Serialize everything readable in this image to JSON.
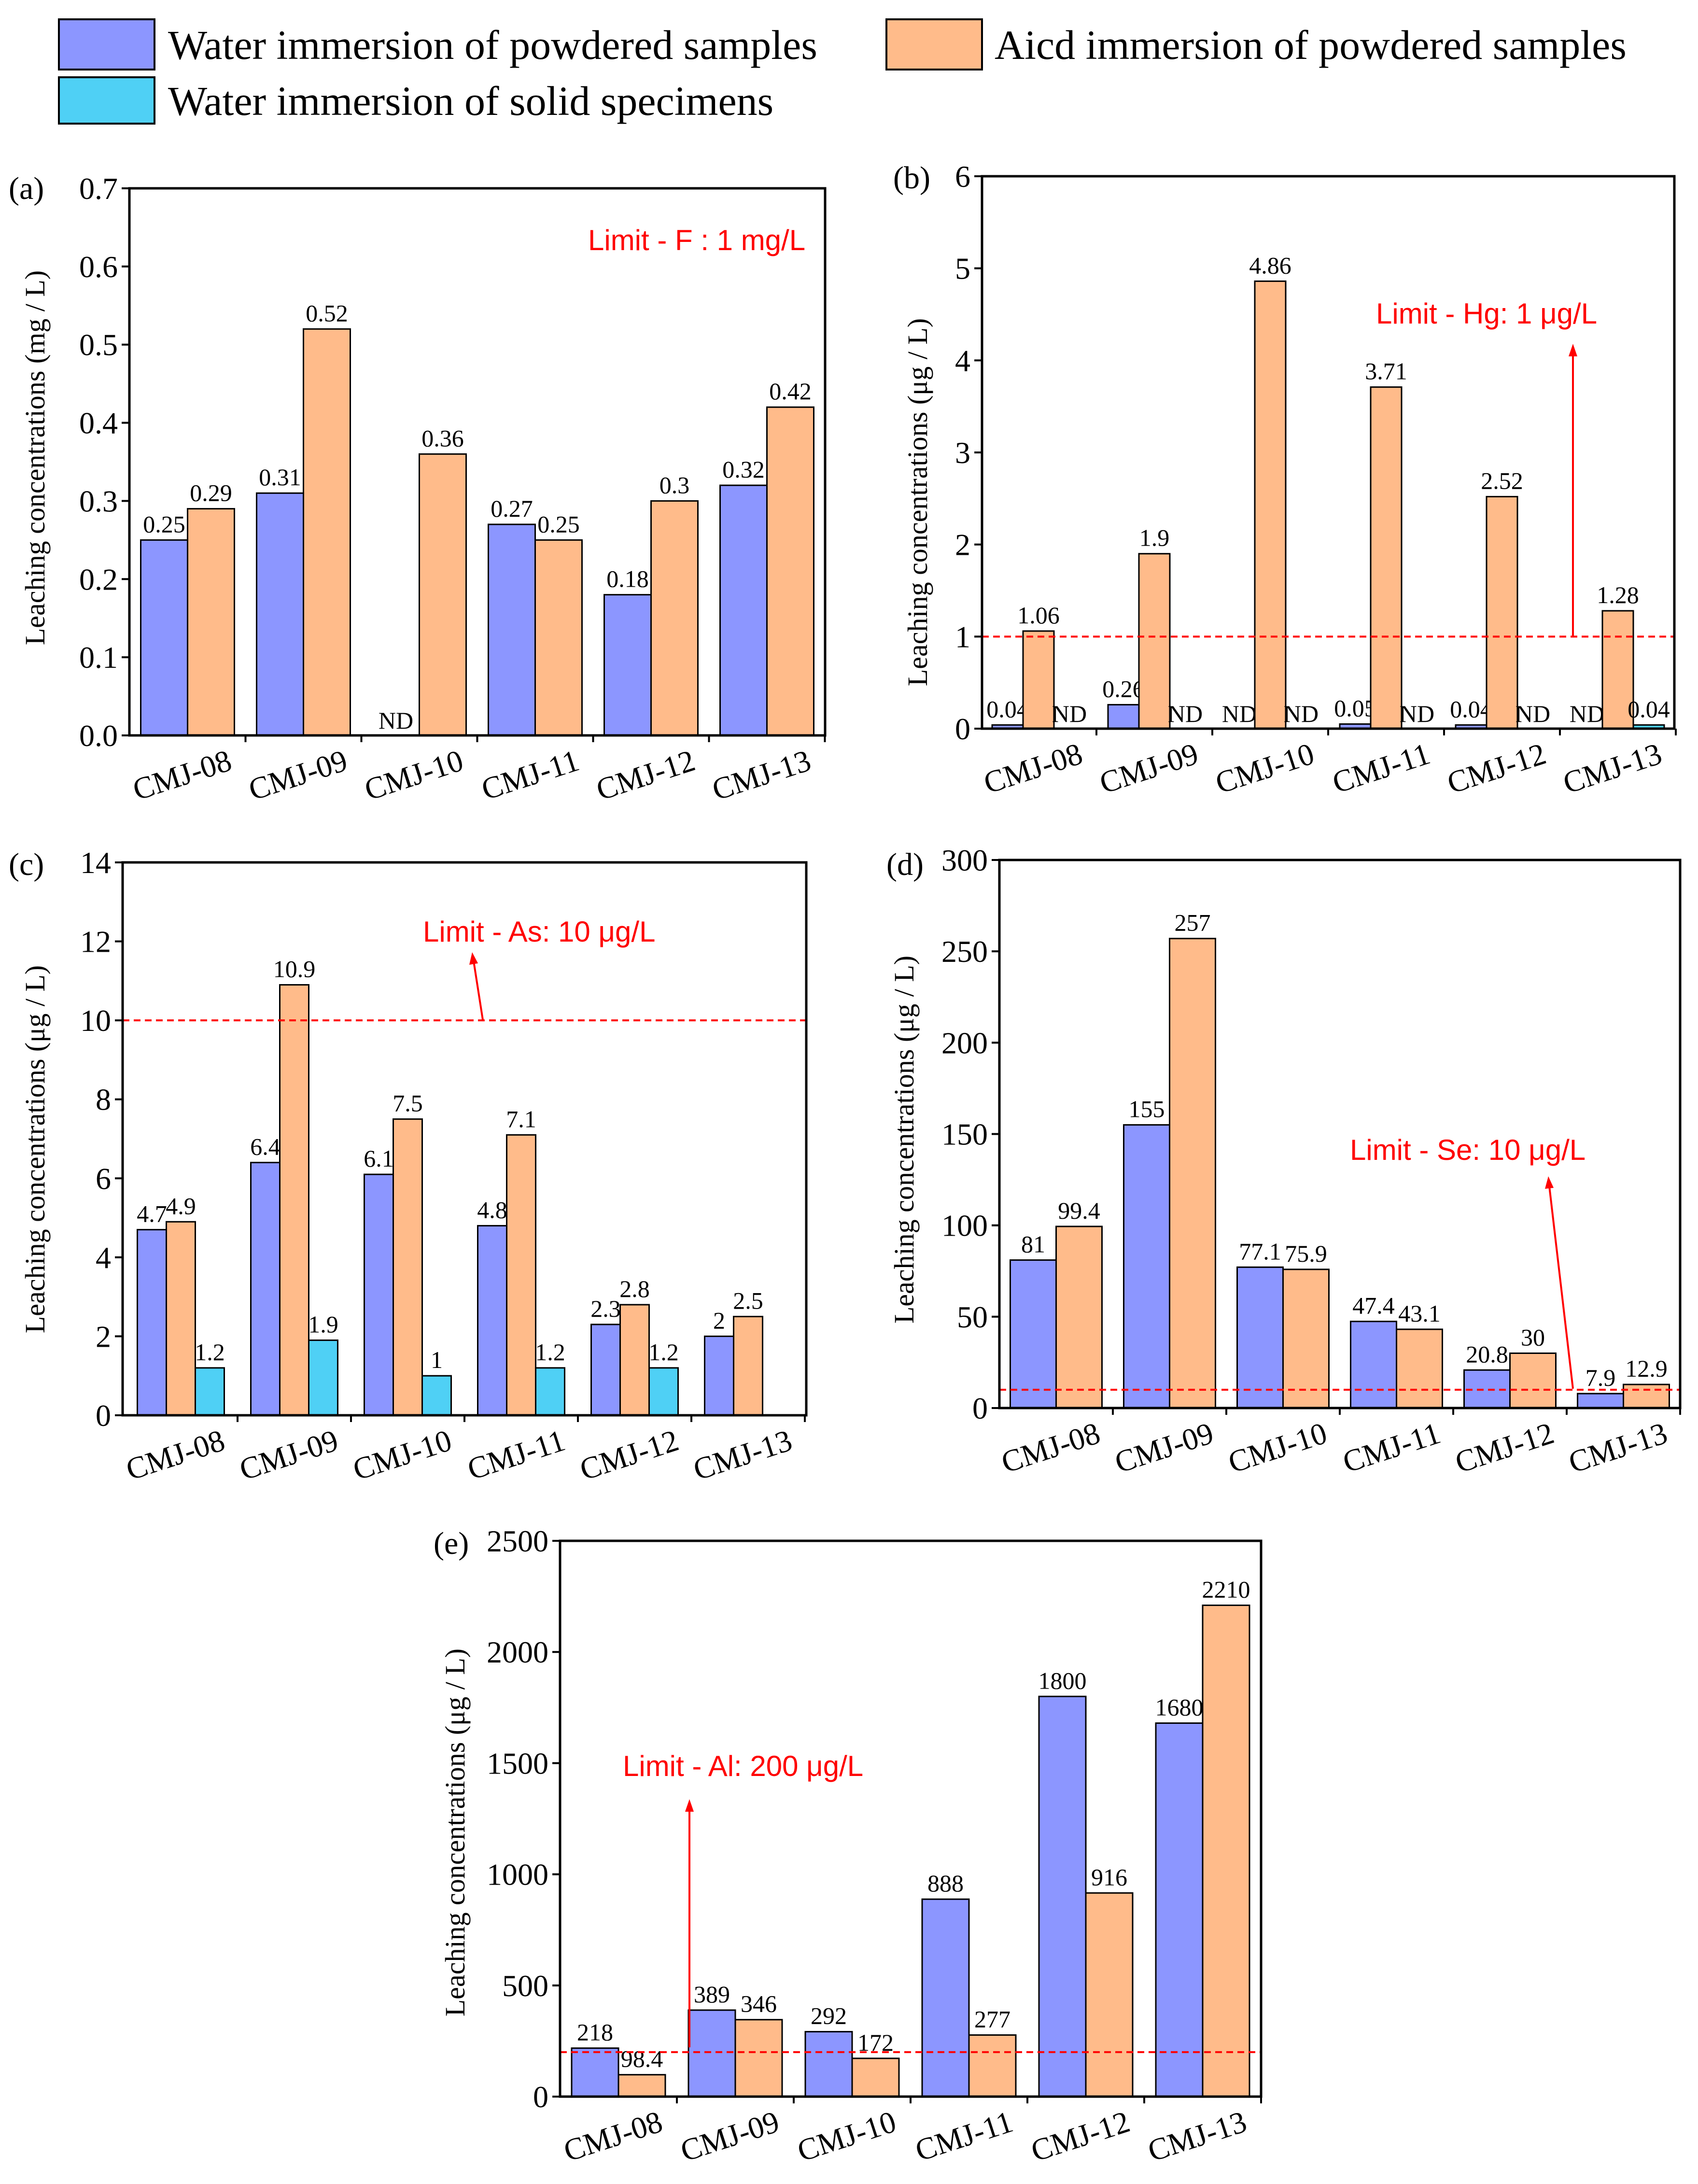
{
  "colors": {
    "water_powder": "#8c96ff",
    "acid_powder": "#ffbb8a",
    "water_solid": "#4fd0f5",
    "limit": "#ff0000",
    "axis": "#000000"
  },
  "legend": [
    {
      "key": "water_powder",
      "label": "Water immersion of powdered samples"
    },
    {
      "key": "acid_powder",
      "label": "Aicd immersion of powdered samples"
    },
    {
      "key": "water_solid",
      "label": "Water immersion of solid specimens"
    }
  ],
  "chart_data": [
    {
      "panel": "(a)",
      "type": "bar",
      "ylabel": "Leaching concentrations (mg / L)",
      "ylim": [
        0,
        0.7
      ],
      "yticks": [
        "0.0",
        "0.1",
        "0.2",
        "0.3",
        "0.4",
        "0.5",
        "0.6",
        "0.7"
      ],
      "categories": [
        "CMJ-08",
        "CMJ-09",
        "CMJ-10",
        "CMJ-11",
        "CMJ-12",
        "CMJ-13"
      ],
      "series": [
        {
          "key": "water_powder",
          "name": "Water immersion of powdered samples",
          "values": [
            0.25,
            0.31,
            null,
            0.27,
            0.18,
            0.32
          ],
          "labels": [
            "0.25",
            "0.31",
            "ND",
            "0.27",
            "0.18",
            "0.32"
          ]
        },
        {
          "key": "acid_powder",
          "name": "Aicd immersion of powdered samples",
          "values": [
            0.29,
            0.52,
            0.36,
            0.25,
            0.3,
            0.42
          ],
          "labels": [
            "0.29",
            "0.52",
            "0.36",
            "0.25",
            "0.3",
            "0.42"
          ]
        }
      ],
      "limit": {
        "label": "Limit - F : 1 mg/L",
        "value": null
      }
    },
    {
      "panel": "(b)",
      "type": "bar",
      "ylabel": "Leaching concentrations (μg / L)",
      "ylim": [
        0,
        6
      ],
      "yticks": [
        "0",
        "1",
        "2",
        "3",
        "4",
        "5",
        "6"
      ],
      "categories": [
        "CMJ-08",
        "CMJ-09",
        "CMJ-10",
        "CMJ-11",
        "CMJ-12",
        "CMJ-13"
      ],
      "series": [
        {
          "key": "water_powder",
          "name": "Water immersion of powdered samples",
          "values": [
            0.04,
            0.26,
            null,
            0.05,
            0.04,
            null
          ],
          "labels": [
            "0.04",
            "0.26",
            "ND",
            "0.05",
            "0.04",
            "ND"
          ]
        },
        {
          "key": "acid_powder",
          "name": "Aicd immersion of powdered samples",
          "values": [
            1.06,
            1.9,
            4.86,
            3.71,
            2.52,
            1.28
          ],
          "labels": [
            "1.06",
            "1.9",
            "4.86",
            "3.71",
            "2.52",
            "1.28"
          ]
        },
        {
          "key": "water_solid",
          "name": "Water immersion of solid specimens",
          "values": [
            null,
            null,
            null,
            null,
            null,
            0.04
          ],
          "labels": [
            "ND",
            "ND",
            "ND",
            "ND",
            "ND",
            "0.04"
          ]
        }
      ],
      "limit": {
        "label": "Limit - Hg: 1 μg/L",
        "value": 1
      }
    },
    {
      "panel": "(c)",
      "type": "bar",
      "ylabel": "Leaching concentrations (μg / L)",
      "ylim": [
        0,
        14
      ],
      "yticks": [
        "0",
        "2",
        "4",
        "6",
        "8",
        "10",
        "12",
        "14"
      ],
      "categories": [
        "CMJ-08",
        "CMJ-09",
        "CMJ-10",
        "CMJ-11",
        "CMJ-12",
        "CMJ-13"
      ],
      "series": [
        {
          "key": "water_powder",
          "name": "Water immersion of powdered samples",
          "values": [
            4.7,
            6.4,
            6.1,
            4.8,
            2.3,
            2
          ],
          "labels": [
            "4.7",
            "6.4",
            "6.1",
            "4.8",
            "2.3",
            "2"
          ]
        },
        {
          "key": "acid_powder",
          "name": "Aicd immersion of powdered samples",
          "values": [
            4.9,
            10.9,
            7.5,
            7.1,
            2.8,
            2.5
          ],
          "labels": [
            "4.9",
            "10.9",
            "7.5",
            "7.1",
            "2.8",
            "2.5"
          ]
        },
        {
          "key": "water_solid",
          "name": "Water immersion of solid specimens",
          "values": [
            1.2,
            1.9,
            1,
            1.2,
            1.2,
            null
          ],
          "labels": [
            "1.2",
            "1.9",
            "1",
            "1.2",
            "1.2",
            ""
          ]
        }
      ],
      "limit": {
        "label": "Limit - As: 10 μg/L",
        "value": 10
      }
    },
    {
      "panel": "(d)",
      "type": "bar",
      "ylabel": "Leaching concentrations (μg / L)",
      "ylim": [
        0,
        300
      ],
      "yticks": [
        "0",
        "50",
        "100",
        "150",
        "200",
        "250",
        "300"
      ],
      "categories": [
        "CMJ-08",
        "CMJ-09",
        "CMJ-10",
        "CMJ-11",
        "CMJ-12",
        "CMJ-13"
      ],
      "series": [
        {
          "key": "water_powder",
          "name": "Water immersion of powdered samples",
          "values": [
            81,
            155,
            77.1,
            47.4,
            20.8,
            7.9
          ],
          "labels": [
            "81",
            "155",
            "77.1",
            "47.4",
            "20.8",
            "7.9"
          ]
        },
        {
          "key": "acid_powder",
          "name": "Aicd immersion of powdered samples",
          "values": [
            99.4,
            257,
            75.9,
            43.1,
            30,
            12.9
          ],
          "labels": [
            "99.4",
            "257",
            "75.9",
            "43.1",
            "30",
            "12.9"
          ]
        }
      ],
      "limit": {
        "label": "Limit - Se: 10 μg/L",
        "value": 10
      }
    },
    {
      "panel": "(e)",
      "type": "bar",
      "ylabel": "Leaching concentrations (μg / L)",
      "ylim": [
        0,
        2500
      ],
      "yticks": [
        "0",
        "500",
        "1000",
        "1500",
        "2000",
        "2500"
      ],
      "categories": [
        "CMJ-08",
        "CMJ-09",
        "CMJ-10",
        "CMJ-11",
        "CMJ-12",
        "CMJ-13"
      ],
      "series": [
        {
          "key": "water_powder",
          "name": "Water immersion of powdered samples",
          "values": [
            218,
            389,
            292,
            888,
            1800,
            1680
          ],
          "labels": [
            "218",
            "389",
            "292",
            "888",
            "1800",
            "1680"
          ]
        },
        {
          "key": "acid_powder",
          "name": "Aicd immersion of powdered samples",
          "values": [
            98.4,
            346,
            172,
            277,
            916,
            2210
          ],
          "labels": [
            "98.4",
            "346",
            "172",
            "277",
            "916",
            "2210"
          ]
        }
      ],
      "limit": {
        "label": "Limit - Al: 200 μg/L",
        "value": 200
      }
    }
  ]
}
